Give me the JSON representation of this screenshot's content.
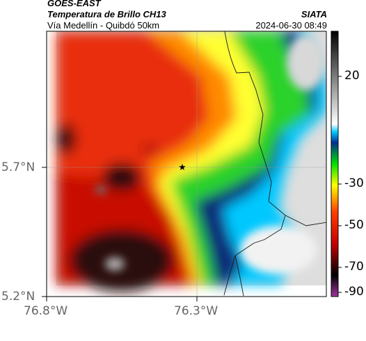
{
  "header": {
    "line1": "GOES-EAST",
    "line2": "Temperatura de Brillo CH13",
    "line3": "Vía Medellín - Quibdó 50km",
    "source": "SIATA",
    "timestamp": "2024-06-30 08:49"
  },
  "axes": {
    "y_ticks": [
      "5.7°N",
      "5.2°N"
    ],
    "x_ticks": [
      "76.8°W",
      "76.3°W"
    ]
  },
  "colorbar": {
    "ticks": [
      "20",
      "-30",
      "-50",
      "-70",
      "-90"
    ],
    "range": [
      -95,
      45
    ],
    "colors": [
      "#a034a0",
      "#000000",
      "#c80000",
      "#ff4000",
      "#ffff00",
      "#00e000",
      "#003090",
      "#00c8ff",
      "#ffffff",
      "#000000"
    ]
  },
  "map": {
    "marker_icon": "star-icon",
    "colors": {
      "warm_red": "#e82e10",
      "deep_red": "#c80f06",
      "black": "#2a0a08",
      "orange": "#ff8a00",
      "yellow": "#ffff30",
      "green": "#2bd22b",
      "navy": "#0a2a78",
      "cyan": "#00c8ff",
      "white": "#ffffff",
      "gray": "#dedede"
    }
  }
}
